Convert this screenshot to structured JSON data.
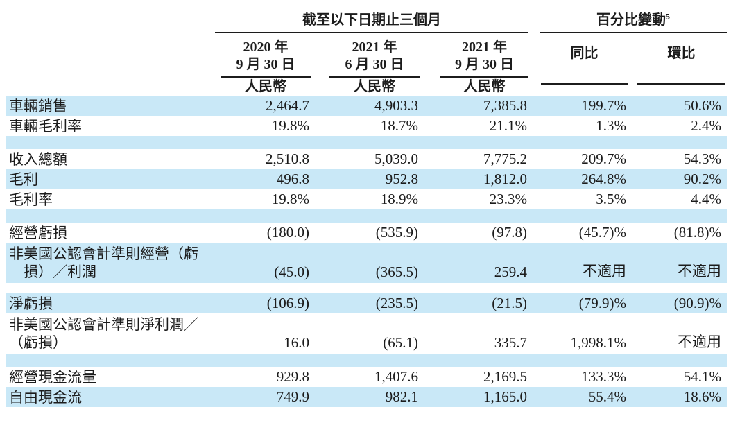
{
  "page": {
    "background_color": "#ffffff",
    "row_highlight_color": "#c9e8f7",
    "text_color": "#1c1c1c"
  },
  "table": {
    "group_headers": [
      {
        "label": "截至以下日期止三個月"
      },
      {
        "label": "百分比變動",
        "superscript": "5"
      }
    ],
    "date_columns": [
      {
        "year_line": "2020 年",
        "date_line": "9 月 30 日",
        "currency": "人民幣"
      },
      {
        "year_line": "2021 年",
        "date_line": "6 月 30 日",
        "currency": "人民幣"
      },
      {
        "year_line": "2021 年",
        "date_line": "9 月 30 日",
        "currency": "人民幣"
      }
    ],
    "change_columns": [
      {
        "label": "同比"
      },
      {
        "label": "環比"
      }
    ],
    "rows": [
      {
        "type": "data",
        "bg": "blue",
        "label": "車輛銷售",
        "values": [
          "2,464.7",
          "4,903.3",
          "7,385.8",
          "199.7%",
          "50.6%"
        ]
      },
      {
        "type": "data",
        "bg": "white",
        "label": "車輛毛利率",
        "values": [
          "19.8%",
          "18.7%",
          "21.1%",
          "1.3%",
          "2.4%"
        ]
      },
      {
        "type": "spacer",
        "bg": "blue"
      },
      {
        "type": "data",
        "bg": "white",
        "label": "收入總額",
        "values": [
          "2,510.8",
          "5,039.0",
          "7,775.2",
          "209.7%",
          "54.3%"
        ]
      },
      {
        "type": "data",
        "bg": "blue",
        "label": "毛利",
        "values": [
          "496.8",
          "952.8",
          "1,812.0",
          "264.8%",
          "90.2%"
        ]
      },
      {
        "type": "data",
        "bg": "white",
        "label": "毛利率",
        "values": [
          "19.8%",
          "18.9%",
          "23.3%",
          "3.5%",
          "4.4%"
        ]
      },
      {
        "type": "spacer",
        "bg": "blue"
      },
      {
        "type": "data",
        "bg": "white",
        "label": "經營虧損",
        "values": [
          "(180.0)",
          "(535.9)",
          "(97.8)",
          "(45.7)%",
          "(81.8)%"
        ]
      },
      {
        "type": "data-tall",
        "bg": "blue",
        "label_lines": [
          "非美國公認會計準則經營（虧",
          "　損）／利潤"
        ],
        "values": [
          "(45.0)",
          "(365.5)",
          "259.4",
          "不適用",
          "不適用"
        ]
      },
      {
        "type": "spacer-small",
        "bg": "white"
      },
      {
        "type": "data",
        "bg": "blue",
        "label": "淨虧損",
        "values": [
          "(106.9)",
          "(235.5)",
          "(21.5)",
          "(79.9)%",
          "(90.9)%"
        ]
      },
      {
        "type": "data-tall",
        "bg": "white",
        "label_lines": [
          "非美國公認會計準則淨利潤／",
          "（虧損）"
        ],
        "values": [
          "16.0",
          "(65.1)",
          "335.7",
          "1,998.1%",
          "不適用"
        ]
      },
      {
        "type": "spacer",
        "bg": "blue"
      },
      {
        "type": "data",
        "bg": "white",
        "label": "經營現金流量",
        "values": [
          "929.8",
          "1,407.6",
          "2,169.5",
          "133.3%",
          "54.1%"
        ]
      },
      {
        "type": "data",
        "bg": "blue",
        "label": "自由現金流",
        "values": [
          "749.9",
          "982.1",
          "1,165.0",
          "55.4%",
          "18.6%"
        ]
      }
    ]
  }
}
